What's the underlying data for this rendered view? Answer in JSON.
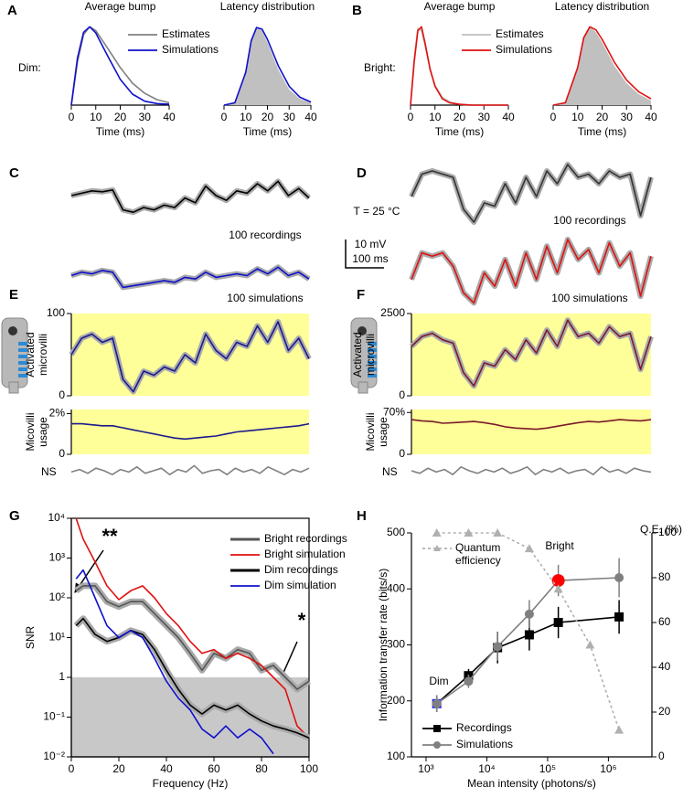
{
  "chart_data": [
    {
      "type": "line",
      "panel": "A",
      "side_label": "Dim:",
      "title": "Average bump",
      "xlabel": "Time (ms)",
      "x": [
        0,
        2.5,
        5,
        7.5,
        10,
        15,
        20,
        25,
        30,
        35,
        40
      ],
      "xlim": [
        0,
        40
      ],
      "xticks": [
        0,
        10,
        20,
        30,
        40
      ],
      "ylim": [
        0,
        1.05
      ],
      "legend": true,
      "series": [
        {
          "name": "Estimates",
          "color": "#808080",
          "values": [
            0,
            0.55,
            0.9,
            1.0,
            0.95,
            0.72,
            0.48,
            0.28,
            0.15,
            0.07,
            0.03
          ]
        },
        {
          "name": "Simulations",
          "color": "#1010cc",
          "values": [
            0,
            0.6,
            0.93,
            1.0,
            0.92,
            0.62,
            0.33,
            0.14,
            0.05,
            0.02,
            0.01
          ]
        }
      ]
    },
    {
      "type": "line",
      "title": "Latency distribution",
      "xlabel": "Time (ms)",
      "x": [
        0,
        5,
        10,
        12.5,
        15,
        17.5,
        20,
        25,
        30,
        35,
        40
      ],
      "xlim": [
        0,
        40
      ],
      "xticks": [
        0,
        10,
        20,
        30,
        40
      ],
      "ylim": [
        0,
        1.05
      ],
      "series": [
        {
          "color": "#c0c0c0",
          "fill": true,
          "values": [
            0,
            0.03,
            0.45,
            0.85,
            1.0,
            0.95,
            0.8,
            0.45,
            0.2,
            0.08,
            0.03
          ]
        },
        {
          "color": "#1010cc",
          "values": [
            0,
            0.03,
            0.42,
            0.82,
            0.99,
            0.97,
            0.84,
            0.5,
            0.24,
            0.1,
            0.04
          ]
        }
      ]
    },
    {
      "type": "line",
      "panel": "B",
      "side_label": "Bright:",
      "title": "Average bump",
      "xlabel": "Time (ms)",
      "x": [
        0,
        1.5,
        3,
        4.5,
        6,
        8,
        10,
        13,
        16,
        20,
        25,
        30,
        40
      ],
      "xlim": [
        0,
        40
      ],
      "xticks": [
        0,
        10,
        20,
        30,
        40
      ],
      "ylim": [
        0,
        1.05
      ],
      "legend": true,
      "series": [
        {
          "name": "Estimates",
          "color": "#c0c0c0",
          "values": [
            0,
            0.6,
            0.98,
            0.95,
            0.75,
            0.45,
            0.25,
            0.1,
            0.04,
            0.01,
            0,
            0,
            0
          ]
        },
        {
          "name": "Simulations",
          "color": "#e01010",
          "values": [
            0,
            0.55,
            0.95,
            1.0,
            0.78,
            0.46,
            0.24,
            0.08,
            0.03,
            0.01,
            0,
            0,
            0
          ]
        }
      ]
    },
    {
      "type": "line",
      "title": "Latency distribution",
      "xlabel": "Time (ms)",
      "x": [
        0,
        5,
        10,
        12.5,
        15,
        17.5,
        20,
        25,
        30,
        35,
        40
      ],
      "xlim": [
        0,
        40
      ],
      "xticks": [
        0,
        10,
        20,
        30,
        40
      ],
      "ylim": [
        0,
        1.05
      ],
      "series": [
        {
          "color": "#c0c0c0",
          "fill": true,
          "values": [
            0,
            0.03,
            0.5,
            0.88,
            1.0,
            0.93,
            0.8,
            0.5,
            0.28,
            0.14,
            0.06
          ]
        },
        {
          "color": "#e01010",
          "values": [
            0,
            0.03,
            0.48,
            0.86,
            1.0,
            0.96,
            0.84,
            0.55,
            0.32,
            0.17,
            0.08
          ]
        }
      ]
    },
    {
      "type": "trace",
      "panel": "C",
      "ylim": [
        0,
        1
      ],
      "annotations": [
        "100 recordings"
      ],
      "series": [
        {
          "color": "#000000",
          "halo": true,
          "values": [
            0.5,
            0.55,
            0.6,
            0.58,
            0.62,
            0.2,
            0.15,
            0.25,
            0.2,
            0.3,
            0.25,
            0.45,
            0.35,
            0.7,
            0.5,
            0.4,
            0.6,
            0.55,
            0.75,
            0.6,
            0.8,
            0.5,
            0.65,
            0.45
          ]
        }
      ]
    },
    {
      "type": "trace",
      "ylim": [
        0,
        1
      ],
      "annotations": [
        "100 simulations"
      ],
      "series": [
        {
          "color": "#1010cc",
          "halo": true,
          "values": [
            0.5,
            0.6,
            0.55,
            0.65,
            0.6,
            0.15,
            0.2,
            0.25,
            0.3,
            0.35,
            0.3,
            0.45,
            0.4,
            0.6,
            0.45,
            0.5,
            0.55,
            0.5,
            0.7,
            0.55,
            0.75,
            0.5,
            0.6,
            0.4
          ]
        }
      ]
    },
    {
      "type": "trace",
      "panel": "D",
      "ylim": [
        0,
        1
      ],
      "annotations": [
        "T = 25 °C",
        "100 recordings"
      ],
      "series": [
        {
          "color": "#333333",
          "halo": true,
          "values": [
            0.5,
            0.85,
            0.9,
            0.85,
            0.8,
            0.3,
            0.1,
            0.4,
            0.35,
            0.7,
            0.4,
            0.8,
            0.5,
            0.9,
            0.7,
            1.0,
            0.8,
            0.85,
            0.7,
            0.9,
            0.8,
            0.85,
            0.2,
            0.8
          ]
        }
      ]
    },
    {
      "type": "trace",
      "ylim": [
        0,
        1
      ],
      "annotations": [
        "10 mV",
        "100 ms",
        "100 simulations"
      ],
      "series": [
        {
          "color": "#e01010",
          "halo": true,
          "values": [
            0.4,
            0.8,
            0.75,
            0.8,
            0.6,
            0.2,
            0.05,
            0.5,
            0.3,
            0.7,
            0.3,
            0.8,
            0.4,
            0.9,
            0.5,
            1.0,
            0.7,
            0.85,
            0.5,
            0.95,
            0.6,
            0.8,
            0.15,
            0.75
          ]
        }
      ]
    },
    {
      "type": "trace",
      "panel": "E",
      "background": "#ffff99",
      "ylabel": [
        "Activated",
        "microvilli"
      ],
      "ylim": [
        0,
        100
      ],
      "yticks": [
        0,
        100
      ],
      "series": [
        {
          "color": "#1a1a8c",
          "halo": true,
          "values": [
            50,
            70,
            75,
            65,
            70,
            20,
            5,
            30,
            25,
            35,
            30,
            50,
            40,
            75,
            55,
            45,
            65,
            60,
            85,
            65,
            90,
            55,
            70,
            45
          ]
        }
      ]
    },
    {
      "type": "trace",
      "background": "#ffff99",
      "ylabel": [
        "Micovilli",
        "usage"
      ],
      "ylim": [
        0,
        2.2
      ],
      "yticks": [
        0,
        {
          "value": 2,
          "label": "2%"
        }
      ],
      "series": [
        {
          "color": "#1a1a8c",
          "values": [
            1.5,
            1.5,
            1.45,
            1.4,
            1.4,
            1.3,
            1.2,
            1.1,
            1.0,
            0.9,
            0.8,
            0.75,
            0.8,
            0.85,
            0.9,
            1.0,
            1.1,
            1.15,
            1.2,
            1.25,
            1.3,
            1.35,
            1.4,
            1.5
          ]
        }
      ]
    },
    {
      "type": "trace",
      "ylim": [
        0,
        1
      ],
      "annotations": [
        "NS"
      ],
      "series": [
        {
          "color": "#808080",
          "values": [
            0.4,
            0.6,
            0.3,
            0.7,
            0.5,
            0.2,
            0.6,
            0.4,
            0.8,
            0.3,
            0.5,
            0.7,
            0.2,
            0.6,
            0.4,
            0.9,
            0.3,
            0.5,
            0.6,
            0.2,
            0.7,
            0.4,
            0.6,
            0.3,
            0.8,
            0.5,
            0.2,
            0.6,
            0.4,
            0.7
          ]
        }
      ]
    },
    {
      "type": "trace",
      "panel": "F",
      "background": "#ffff99",
      "ylabel": [
        "Activated",
        "microvilli"
      ],
      "ylim": [
        0,
        2500
      ],
      "yticks": [
        0,
        2500
      ],
      "series": [
        {
          "color": "#7a1a2a",
          "halo": true,
          "values": [
            1500,
            1800,
            1900,
            1700,
            1600,
            700,
            300,
            1000,
            900,
            1400,
            1100,
            1700,
            1300,
            2000,
            1500,
            2300,
            1800,
            1900,
            1600,
            2100,
            1800,
            1900,
            800,
            1800
          ]
        }
      ]
    },
    {
      "type": "trace",
      "background": "#ffff99",
      "ylabel": [
        "Micovilli",
        "usage"
      ],
      "ylim": [
        0,
        75
      ],
      "yticks": [
        0,
        {
          "value": 70,
          "label": "70%"
        }
      ],
      "series": [
        {
          "color": "#7a1a2a",
          "values": [
            58,
            56,
            55,
            52,
            53,
            54,
            55,
            53,
            50,
            46,
            44,
            43,
            42,
            44,
            47,
            50,
            53,
            55,
            54,
            56,
            58,
            57,
            56,
            58
          ]
        }
      ]
    },
    {
      "type": "trace",
      "ylim": [
        0,
        1
      ],
      "annotations": [
        "NS"
      ],
      "series": [
        {
          "color": "#808080",
          "values": [
            0.5,
            0.3,
            0.7,
            0.4,
            0.6,
            0.2,
            0.8,
            0.5,
            0.3,
            0.6,
            0.4,
            0.7,
            0.3,
            0.5,
            0.8,
            0.2,
            0.6,
            0.4,
            0.7,
            0.3,
            0.5,
            0.6,
            0.2,
            0.8,
            0.4,
            0.6,
            0.3,
            0.7,
            0.5,
            0.4
          ]
        }
      ]
    },
    {
      "type": "line",
      "panel": "G",
      "xlabel": "Frequency (Hz)",
      "ylabel": [
        "SNR"
      ],
      "frame": true,
      "legend": true,
      "annotations": [
        "**",
        "*"
      ],
      "shade": {
        "below": 1,
        "color": "#c8c8c8"
      },
      "x": [
        2,
        5,
        10,
        15,
        20,
        25,
        30,
        35,
        40,
        45,
        50,
        55,
        60,
        65,
        70,
        75,
        80,
        85,
        90,
        95,
        100
      ],
      "xlim": [
        0,
        100
      ],
      "xticks": [
        0,
        20,
        40,
        60,
        80,
        100
      ],
      "ylog": true,
      "ylim": [
        0.01,
        10000
      ],
      "yticks": [
        {
          "value": 0.01,
          "label": "10⁻²"
        },
        {
          "value": 0.1,
          "label": "10⁻¹"
        },
        1,
        {
          "value": 10,
          "label": "10¹"
        },
        {
          "value": 100,
          "label": "10²"
        },
        {
          "value": 1000,
          "label": "10³"
        },
        {
          "value": 10000,
          "label": "10⁴"
        }
      ],
      "series": [
        {
          "name": "Bright recordings",
          "color": "#555555",
          "halo": true,
          "values": [
            150,
            200,
            200,
            80,
            60,
            80,
            80,
            40,
            20,
            10,
            4,
            1.5,
            4,
            3,
            5,
            4,
            1.5,
            2,
            1,
            0.5,
            0.8
          ]
        },
        {
          "name": "Bright simulation",
          "color": "#e01010",
          "values": [
            10000,
            3000,
            800,
            200,
            90,
            150,
            200,
            100,
            40,
            20,
            8,
            4,
            5,
            3,
            4,
            3,
            2,
            1,
            0.5,
            0.06,
            0.03
          ]
        },
        {
          "name": "Dim recordings",
          "color": "#000000",
          "halo": true,
          "values": [
            20,
            30,
            12,
            8,
            10,
            15,
            12,
            5,
            1.5,
            0.5,
            0.2,
            0.12,
            0.2,
            0.15,
            0.2,
            0.12,
            0.08,
            0.06,
            0.05,
            0.04,
            0.03
          ]
        },
        {
          "name": "Dim simulation",
          "color": "#1010cc",
          "values": [
            300,
            500,
            100,
            20,
            10,
            15,
            10,
            3,
            0.8,
            0.3,
            0.15,
            0.05,
            0.03,
            0.06,
            0.03,
            0.05,
            0.03,
            0.012,
            null,
            null,
            null
          ]
        }
      ]
    },
    {
      "type": "line",
      "panel": "H",
      "xlabel": "Mean intensity (photons/s)",
      "ylabel": [
        "Information transfer rate (bits/s)"
      ],
      "y2label": "Q.E. (%)",
      "legend": true,
      "annotations": [
        "Bright",
        "Dim"
      ],
      "xlog": true,
      "xlim": [
        575,
        5200000
      ],
      "xticks": [
        {
          "value": 1000,
          "label": "10³"
        },
        {
          "value": 10000,
          "label": "10⁴"
        },
        {
          "value": 100000,
          "label": "10⁵"
        },
        {
          "value": 1000000,
          "label": "10⁶"
        }
      ],
      "ylim": [
        100,
        500
      ],
      "yticks": [
        100,
        200,
        300,
        400,
        500
      ],
      "y2lim": [
        0,
        100
      ],
      "y2ticks": [
        0,
        20,
        40,
        60,
        80,
        100
      ],
      "series": [
        {
          "name": "Recordings",
          "color": "#000000",
          "marker": "square",
          "x": [
            1500,
            5000,
            15000,
            50000,
            150000,
            1500000
          ],
          "values": [
            195,
            245,
            295,
            318,
            340,
            350
          ],
          "errors": [
            15,
            12,
            28,
            28,
            28,
            30
          ],
          "marker_colors": [
            "#1a1aff",
            null,
            null,
            null,
            null,
            null
          ]
        },
        {
          "name": "Simulations",
          "color": "#808080",
          "marker": "circle",
          "x": [
            1500,
            5000,
            15000,
            50000,
            150000,
            1500000
          ],
          "values": [
            195,
            235,
            297,
            355,
            415,
            420
          ],
          "errors": [
            15,
            12,
            25,
            25,
            28,
            35
          ],
          "marker_colors": [
            null,
            null,
            null,
            null,
            "#ff0000",
            null
          ]
        },
        {
          "name": "Quantum efficiency",
          "color": "#b0b0b0",
          "dashed": true,
          "marker": "triangle",
          "axis": "y2",
          "x": [
            1500,
            5000,
            15000,
            50000,
            150000,
            500000,
            1500000
          ],
          "values": [
            100,
            100,
            100,
            93,
            75,
            50,
            12
          ]
        }
      ]
    }
  ]
}
